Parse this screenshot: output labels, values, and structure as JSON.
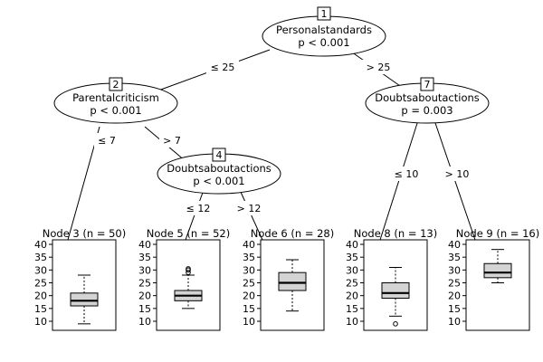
{
  "tree": {
    "inner_nodes": [
      {
        "id": 1,
        "label": "1",
        "variable": "Personalstandards",
        "p_value": "p < 0.001"
      },
      {
        "id": 2,
        "label": "2",
        "variable": "Parentalcriticism",
        "p_value": "p < 0.001"
      },
      {
        "id": 4,
        "label": "4",
        "variable": "Doubtsaboutactions",
        "p_value": "p < 0.001"
      },
      {
        "id": 7,
        "label": "7",
        "variable": "Doubtsaboutactions",
        "p_value": "p = 0.003"
      }
    ],
    "edges": [
      {
        "from": 1,
        "to": 2,
        "label": "≤ 25"
      },
      {
        "from": 1,
        "to": 7,
        "label": "> 25"
      },
      {
        "from": 2,
        "to": 3,
        "label": "≤ 7"
      },
      {
        "from": 2,
        "to": 4,
        "label": "> 7"
      },
      {
        "from": 4,
        "to": 5,
        "label": "≤ 12"
      },
      {
        "from": 4,
        "to": 6,
        "label": "> 12"
      },
      {
        "from": 7,
        "to": 8,
        "label": "≤ 10"
      },
      {
        "from": 7,
        "to": 9,
        "label": "> 10"
      }
    ],
    "terminal_nodes": [
      {
        "id": 3,
        "title": "Node 3 (n = 50)",
        "min": 9,
        "q1": 16,
        "median": 18,
        "q3": 21,
        "max": 28,
        "outliers": []
      },
      {
        "id": 5,
        "title": "Node 5 (n = 52)",
        "min": 15,
        "q1": 18,
        "median": 20,
        "q3": 22,
        "max": 28,
        "outliers": [
          29,
          30,
          30.5
        ]
      },
      {
        "id": 6,
        "title": "Node 6 (n = 28)",
        "min": 14,
        "q1": 22,
        "median": 25,
        "q3": 29,
        "max": 34,
        "outliers": []
      },
      {
        "id": 8,
        "title": "Node 8 (n = 13)",
        "min": 12,
        "q1": 19,
        "median": 21,
        "q3": 25,
        "max": 31,
        "outliers": [
          9
        ]
      },
      {
        "id": 9,
        "title": "Node 9 (n = 16)",
        "min": 25,
        "q1": 27,
        "median": 29,
        "q3": 32.5,
        "max": 38,
        "outliers": []
      }
    ],
    "y_axis": {
      "min": 10,
      "max": 40,
      "ticks": [
        "10",
        "15",
        "20",
        "25",
        "30",
        "35",
        "40"
      ]
    }
  }
}
